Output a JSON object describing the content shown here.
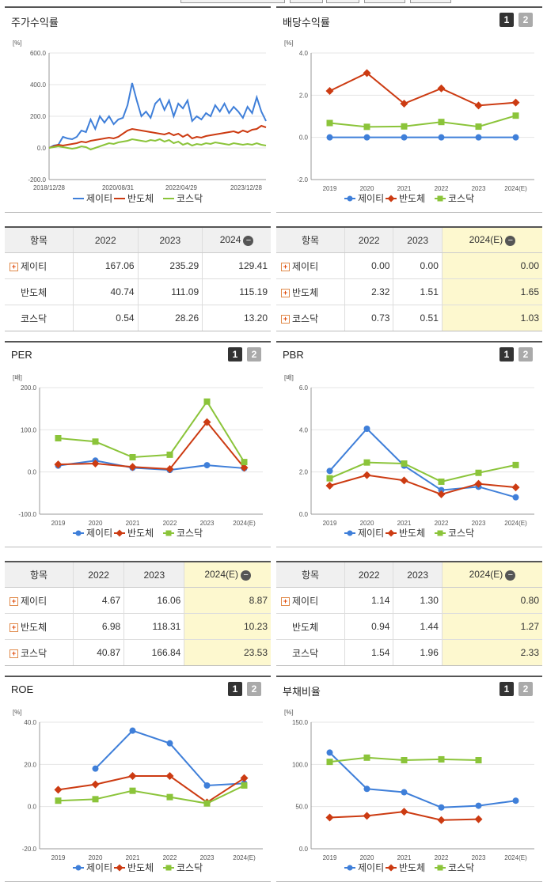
{
  "colors": {
    "jeiti": "#3f7fd9",
    "bando": "#cc3b12",
    "kosdaq": "#8bc43a"
  },
  "legend": [
    "제이티",
    "반도체",
    "코스닥"
  ],
  "stock_return": {
    "title": "주가수익률",
    "unit": "[%]",
    "chart_data": {
      "type": "line",
      "ylim": [
        -200,
        600
      ],
      "yticks": [
        "600.0",
        "400.0",
        "200.0",
        "0.0",
        "-200.0"
      ],
      "xticks": [
        "2018/12/28",
        "2020/08/31",
        "2022/04/29",
        "2023/12/28"
      ],
      "series": [
        {
          "name": "제이티",
          "values": [
            0,
            15,
            20,
            70,
            60,
            55,
            70,
            110,
            100,
            180,
            120,
            200,
            160,
            200,
            150,
            180,
            190,
            270,
            410,
            300,
            200,
            230,
            190,
            280,
            310,
            240,
            300,
            200,
            280,
            250,
            300,
            170,
            200,
            180,
            220,
            200,
            270,
            230,
            280,
            220,
            260,
            230,
            190,
            260,
            220,
            320,
            230,
            170
          ]
        },
        {
          "name": "반도체",
          "values": [
            0,
            10,
            20,
            15,
            20,
            25,
            30,
            40,
            35,
            45,
            50,
            55,
            60,
            65,
            60,
            70,
            90,
            110,
            120,
            115,
            110,
            105,
            100,
            95,
            90,
            85,
            95,
            80,
            90,
            70,
            85,
            60,
            70,
            65,
            75,
            80,
            85,
            90,
            95,
            100,
            105,
            95,
            110,
            100,
            115,
            120,
            140,
            130
          ]
        },
        {
          "name": "코스닥",
          "values": [
            0,
            5,
            10,
            5,
            0,
            -5,
            0,
            10,
            5,
            -10,
            0,
            10,
            20,
            30,
            25,
            35,
            40,
            45,
            55,
            50,
            45,
            40,
            50,
            45,
            55,
            40,
            50,
            30,
            40,
            20,
            30,
            15,
            25,
            20,
            30,
            25,
            35,
            30,
            25,
            20,
            30,
            25,
            20,
            25,
            20,
            30,
            20,
            15
          ]
        }
      ]
    }
  },
  "stock_table": {
    "headers": [
      "항목",
      "2022",
      "2023",
      "2024"
    ],
    "rows": [
      {
        "name": "제이티",
        "plus": true,
        "values": [
          "167.06",
          "235.29",
          "129.41"
        ]
      },
      {
        "name": "반도체",
        "plus": false,
        "values": [
          "40.74",
          "111.09",
          "115.19"
        ]
      },
      {
        "name": "코스닥",
        "plus": false,
        "values": [
          "0.54",
          "28.26",
          "13.20"
        ]
      }
    ]
  },
  "dividend": {
    "title": "배당수익률",
    "unit": "[%]",
    "buttons": [
      "1",
      "2"
    ],
    "chart_data": {
      "type": "line",
      "ylim": [
        -2,
        4
      ],
      "yticks": [
        "4.0",
        "2.0",
        "0.0",
        "-2.0"
      ],
      "categories": [
        "2019",
        "2020",
        "2021",
        "2022",
        "2023",
        "2024(E)"
      ],
      "series": [
        {
          "name": "제이티",
          "values": [
            0.0,
            0.0,
            0.0,
            0.0,
            0.0,
            0.0
          ]
        },
        {
          "name": "반도체",
          "values": [
            2.2,
            3.05,
            1.6,
            2.32,
            1.51,
            1.65
          ]
        },
        {
          "name": "코스닥",
          "values": [
            0.68,
            0.5,
            0.52,
            0.73,
            0.51,
            1.03
          ]
        }
      ]
    }
  },
  "dividend_table": {
    "headers": [
      "항목",
      "2022",
      "2023",
      "2024(E)"
    ],
    "rows": [
      {
        "name": "제이티",
        "plus": true,
        "values": [
          "0.00",
          "0.00",
          "0.00"
        ]
      },
      {
        "name": "반도체",
        "plus": true,
        "values": [
          "2.32",
          "1.51",
          "1.65"
        ]
      },
      {
        "name": "코스닥",
        "plus": true,
        "values": [
          "0.73",
          "0.51",
          "1.03"
        ]
      }
    ]
  },
  "per": {
    "title": "PER",
    "unit": "[배]",
    "buttons": [
      "1",
      "2"
    ],
    "chart_data": {
      "type": "line",
      "ylim": [
        -100,
        200
      ],
      "yticks": [
        "200.0",
        "100.0",
        "0.0",
        "-100.0"
      ],
      "categories": [
        "2019",
        "2020",
        "2021",
        "2022",
        "2023",
        "2024(E)"
      ],
      "series": [
        {
          "name": "제이티",
          "values": [
            15,
            27,
            10,
            4.67,
            16.06,
            8.87
          ]
        },
        {
          "name": "반도체",
          "values": [
            18,
            20,
            12,
            6.98,
            118.31,
            10.23
          ]
        },
        {
          "name": "코스닥",
          "values": [
            80,
            72,
            35,
            40.87,
            166.84,
            23.53
          ]
        }
      ]
    }
  },
  "per_table": {
    "headers": [
      "항목",
      "2022",
      "2023",
      "2024(E)"
    ],
    "rows": [
      {
        "name": "제이티",
        "plus": true,
        "values": [
          "4.67",
          "16.06",
          "8.87"
        ]
      },
      {
        "name": "반도체",
        "plus": true,
        "values": [
          "6.98",
          "118.31",
          "10.23"
        ]
      },
      {
        "name": "코스닥",
        "plus": true,
        "values": [
          "40.87",
          "166.84",
          "23.53"
        ]
      }
    ]
  },
  "pbr": {
    "title": "PBR",
    "unit": "[배]",
    "buttons": [
      "1",
      "2"
    ],
    "chart_data": {
      "type": "line",
      "ylim": [
        0,
        6
      ],
      "yticks": [
        "6.0",
        "4.0",
        "2.0",
        "0.0"
      ],
      "categories": [
        "2019",
        "2020",
        "2021",
        "2022",
        "2023",
        "2024(E)"
      ],
      "series": [
        {
          "name": "제이티",
          "values": [
            2.05,
            4.05,
            2.3,
            1.14,
            1.3,
            0.8
          ]
        },
        {
          "name": "반도체",
          "values": [
            1.35,
            1.85,
            1.6,
            0.94,
            1.44,
            1.27
          ]
        },
        {
          "name": "코스닥",
          "values": [
            1.7,
            2.45,
            2.4,
            1.54,
            1.96,
            2.33
          ]
        }
      ]
    }
  },
  "pbr_table": {
    "headers": [
      "항목",
      "2022",
      "2023",
      "2024(E)"
    ],
    "rows": [
      {
        "name": "제이티",
        "plus": true,
        "values": [
          "1.14",
          "1.30",
          "0.80"
        ]
      },
      {
        "name": "반도체",
        "plus": false,
        "values": [
          "0.94",
          "1.44",
          "1.27"
        ]
      },
      {
        "name": "코스닥",
        "plus": false,
        "values": [
          "1.54",
          "1.96",
          "2.33"
        ]
      }
    ]
  },
  "roe": {
    "title": "ROE",
    "unit": "[%]",
    "buttons": [
      "1",
      "2"
    ],
    "chart_data": {
      "type": "line",
      "ylim": [
        -20,
        40
      ],
      "yticks": [
        "40.0",
        "20.0",
        "0.0",
        "-20.0"
      ],
      "categories": [
        "2019",
        "2020",
        "2021",
        "2022",
        "2023",
        "2024(E)"
      ],
      "series": [
        {
          "name": "제이티",
          "values": [
            null,
            18,
            36,
            30,
            10,
            11
          ]
        },
        {
          "name": "반도체",
          "values": [
            8,
            10.5,
            14.5,
            14.5,
            2,
            13.5
          ]
        },
        {
          "name": "코스닥",
          "values": [
            2.8,
            3.5,
            7.5,
            4.5,
            1.5,
            10
          ]
        }
      ]
    }
  },
  "debt": {
    "title": "부채비율",
    "unit": "[%]",
    "buttons": [
      "1",
      "2"
    ],
    "chart_data": {
      "type": "line",
      "ylim": [
        0,
        150
      ],
      "yticks": [
        "150.0",
        "100.0",
        "50.0",
        "0.0"
      ],
      "categories": [
        "2019",
        "2020",
        "2021",
        "2022",
        "2023",
        "2024(E)"
      ],
      "series": [
        {
          "name": "제이티",
          "values": [
            114,
            71,
            67,
            49,
            51,
            57
          ]
        },
        {
          "name": "반도체",
          "values": [
            37,
            39,
            44,
            34,
            35,
            null
          ]
        },
        {
          "name": "코스닥",
          "values": [
            103,
            108,
            105,
            106,
            105,
            null
          ]
        }
      ]
    }
  }
}
